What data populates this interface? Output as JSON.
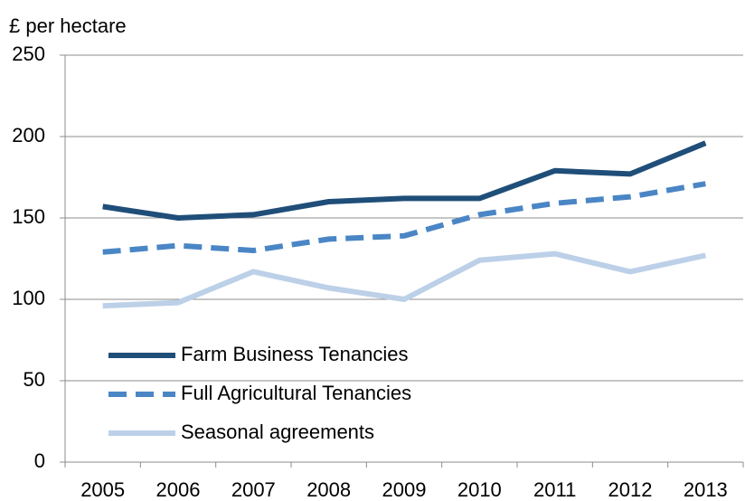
{
  "chart_data": {
    "type": "line",
    "y_axis_label": "£ per hectare",
    "categories": [
      "2005",
      "2006",
      "2007",
      "2008",
      "2009",
      "2010",
      "2011",
      "2012",
      "2013"
    ],
    "series": [
      {
        "name": "Farm Business Tenancies",
        "color": "#1f4e79",
        "line_style": "solid",
        "values": [
          157,
          150,
          152,
          160,
          162,
          162,
          179,
          177,
          196
        ]
      },
      {
        "name": "Full Agricultural Tenancies",
        "color": "#4a86c5",
        "line_style": "dashed",
        "values": [
          129,
          133,
          130,
          137,
          139,
          152,
          159,
          163,
          171
        ]
      },
      {
        "name": "Seasonal agreements",
        "color": "#bcd0e8",
        "line_style": "solid",
        "values": [
          96,
          98,
          117,
          107,
          100,
          124,
          128,
          117,
          127
        ]
      }
    ],
    "ylim": [
      0,
      250
    ],
    "yticks": [
      0,
      50,
      100,
      150,
      200,
      250
    ],
    "grid": true,
    "legend": "lower left"
  }
}
